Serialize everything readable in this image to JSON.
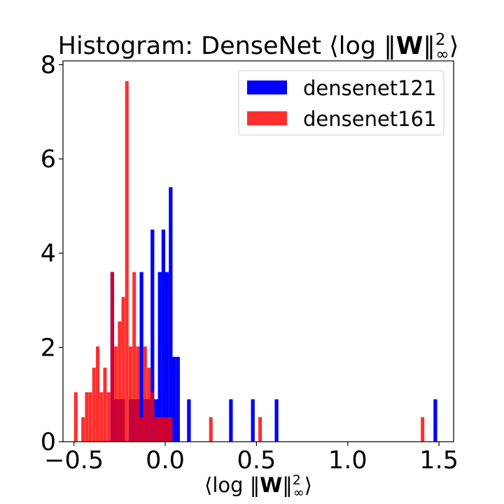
{
  "chart_data": {
    "type": "bar",
    "title": "Histogram: DenseNet ⟨log ‖W‖²∞⟩",
    "title_parts": {
      "prefix": "Histogram: DenseNet ⟨log ‖",
      "bold": "W",
      "mid": "‖",
      "sup": "2",
      "sub": "∞",
      "suffix": "⟩"
    },
    "xlabel": "⟨log ‖W‖²∞⟩",
    "xlabel_parts": {
      "prefix": "⟨log ‖",
      "bold": "W",
      "mid": "‖",
      "sup": "2",
      "sub": "∞",
      "suffix": "⟩"
    },
    "ylabel": "",
    "xlim": [
      -0.56,
      1.58
    ],
    "ylim": [
      0,
      8.08
    ],
    "xticks": [
      -0.5,
      0.0,
      0.5,
      1.0,
      1.5
    ],
    "xtick_labels": [
      "−0.5",
      "0.0",
      "0.5",
      "1.0",
      "1.5"
    ],
    "yticks": [
      0,
      2,
      4,
      6,
      8
    ],
    "ytick_labels": [
      "0",
      "2",
      "4",
      "6",
      "8"
    ],
    "grid": false,
    "legend_position": "top-right",
    "series": [
      {
        "name": "densenet121",
        "color": "#0000ff",
        "opacity": 1,
        "bin_width": 0.0202,
        "bins": [
          [
            -0.29,
            3.6
          ],
          [
            -0.27,
            0.9
          ],
          [
            -0.25,
            0.9
          ],
          [
            -0.23,
            0.9
          ],
          [
            -0.19,
            0.9
          ],
          [
            -0.17,
            0.9
          ],
          [
            -0.15,
            0.9
          ],
          [
            -0.13,
            3.6
          ],
          [
            -0.11,
            0.9
          ],
          [
            -0.09,
            0.9
          ],
          [
            -0.07,
            4.5
          ],
          [
            -0.05,
            0.9
          ],
          [
            -0.03,
            3.6
          ],
          [
            -0.01,
            4.5
          ],
          [
            0.01,
            3.6
          ],
          [
            0.03,
            5.4
          ],
          [
            0.05,
            1.8
          ],
          [
            0.07,
            1.8
          ],
          [
            0.13,
            0.9
          ],
          [
            0.36,
            0.9
          ],
          [
            0.48,
            0.9
          ],
          [
            0.61,
            0.9
          ],
          [
            1.48,
            0.9
          ]
        ]
      },
      {
        "name": "densenet161",
        "color": "#ff0000",
        "opacity": 0.82,
        "bin_width": 0.0193,
        "bins": [
          [
            -0.49,
            1.05
          ],
          [
            -0.45,
            0.52
          ],
          [
            -0.43,
            1.05
          ],
          [
            -0.41,
            1.05
          ],
          [
            -0.39,
            1.57
          ],
          [
            -0.37,
            2.02
          ],
          [
            -0.35,
            1.05
          ],
          [
            -0.33,
            1.57
          ],
          [
            -0.31,
            1.05
          ],
          [
            -0.29,
            3.6
          ],
          [
            -0.27,
            2.02
          ],
          [
            -0.25,
            2.55
          ],
          [
            -0.23,
            3.07
          ],
          [
            -0.21,
            7.65
          ],
          [
            -0.19,
            2.02
          ],
          [
            -0.17,
            3.6
          ],
          [
            -0.15,
            2.02
          ],
          [
            -0.13,
            0.52
          ],
          [
            -0.11,
            2.02
          ],
          [
            -0.09,
            1.57
          ],
          [
            -0.07,
            1.05
          ],
          [
            -0.05,
            0.52
          ],
          [
            -0.03,
            0.52
          ],
          [
            -0.01,
            0.52
          ],
          [
            0.01,
            0.52
          ],
          [
            0.03,
            0.52
          ],
          [
            0.25,
            0.52
          ],
          [
            0.52,
            0.52
          ],
          [
            1.41,
            0.52
          ]
        ]
      }
    ]
  }
}
